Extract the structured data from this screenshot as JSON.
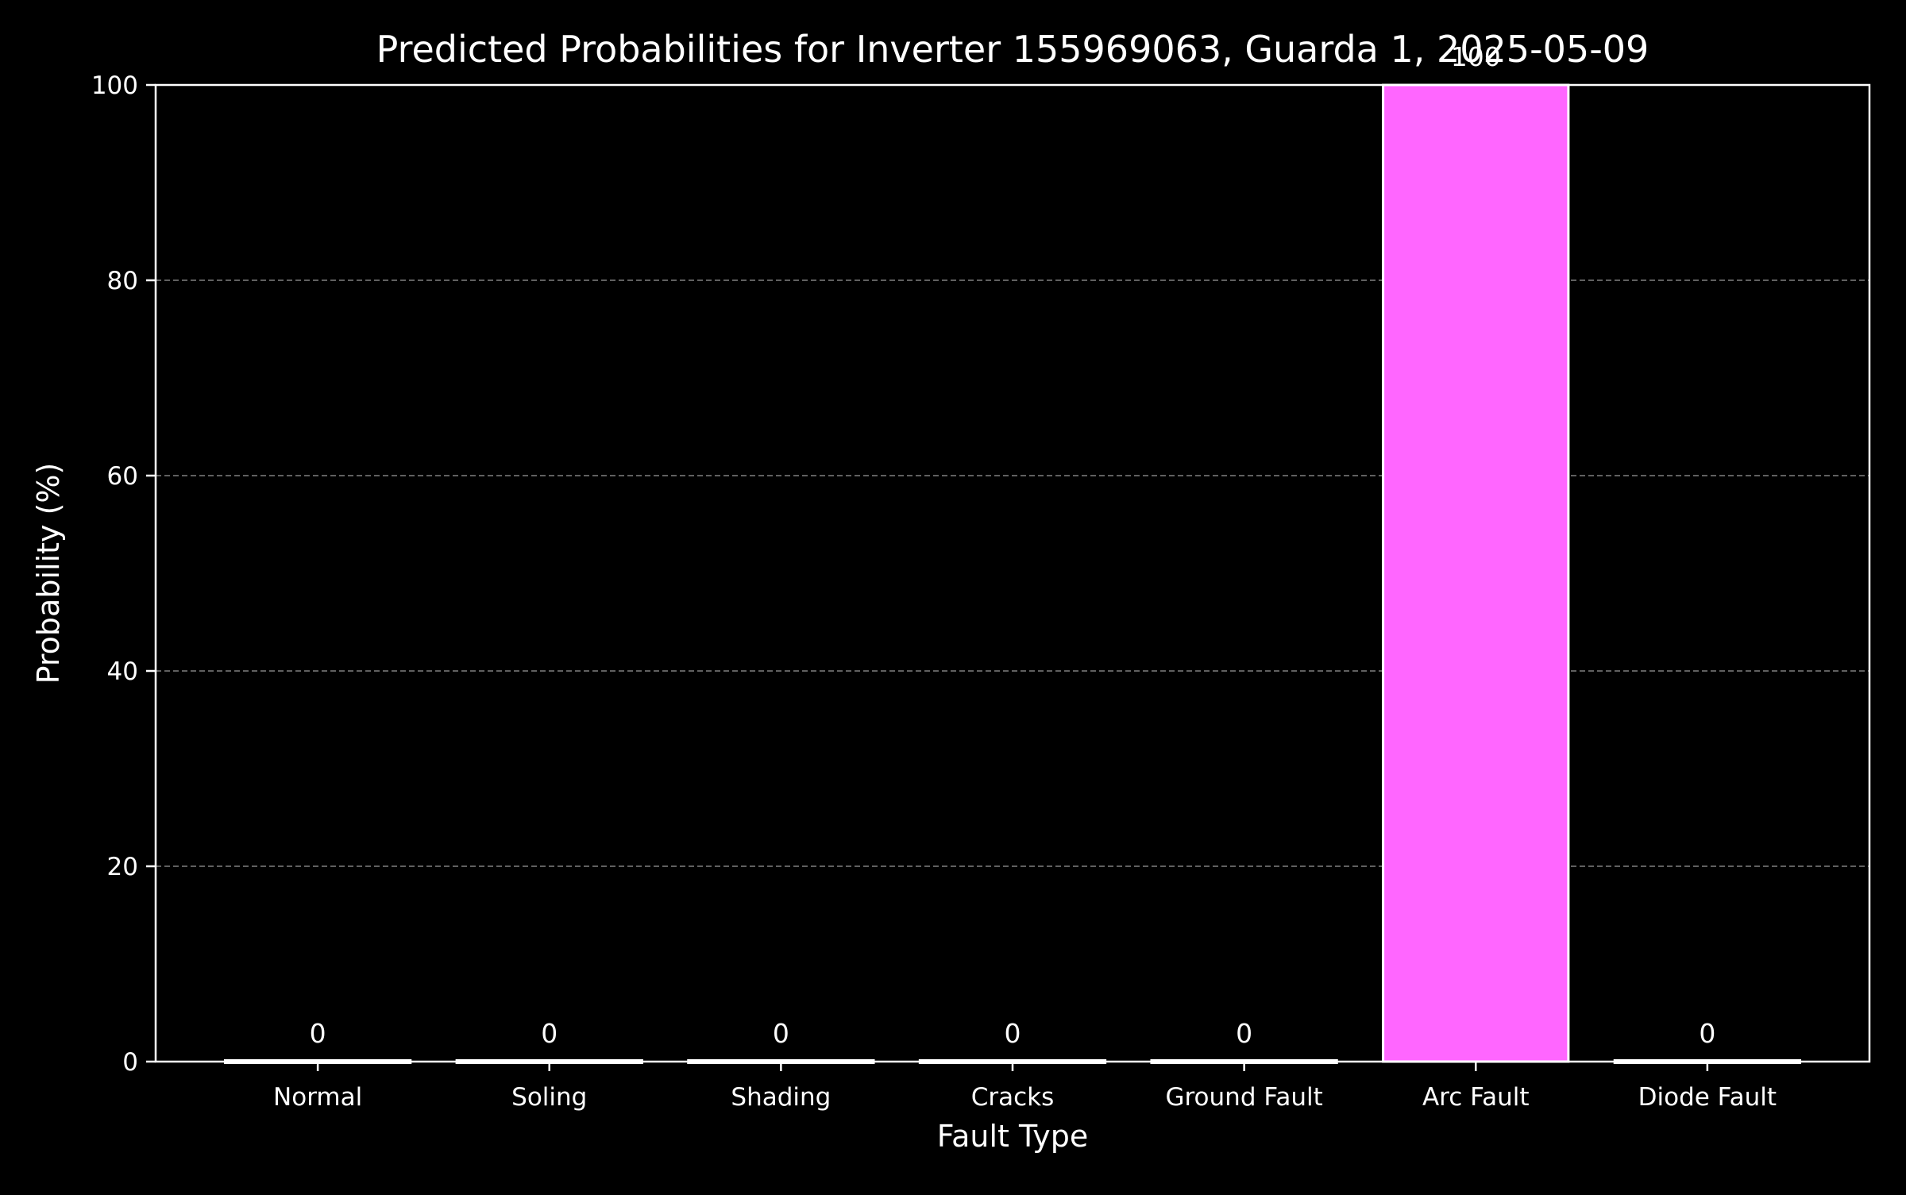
{
  "chart_data": {
    "type": "bar",
    "title": "Predicted Probabilities for Inverter 155969063, Guarda 1, 2025-05-09",
    "xlabel": "Fault Type",
    "ylabel": "Probability (%)",
    "ylim": [
      0,
      100
    ],
    "yticks": [
      0,
      20,
      40,
      60,
      80,
      100
    ],
    "grid": "y-dashed",
    "categories": [
      "Normal",
      "Soling",
      "Shading",
      "Cracks",
      "Ground Fault",
      "Arc Fault",
      "Diode Fault"
    ],
    "values": [
      0,
      0,
      0,
      0,
      0,
      100,
      0
    ],
    "value_labels": [
      "0",
      "0",
      "0",
      "0",
      "0",
      "100",
      "0"
    ],
    "bar_color": "#ff66ff",
    "bar_edge_color": "#ffffff",
    "background_color": "#000000",
    "axis_color": "#ffffff",
    "grid_color": "#808080"
  }
}
